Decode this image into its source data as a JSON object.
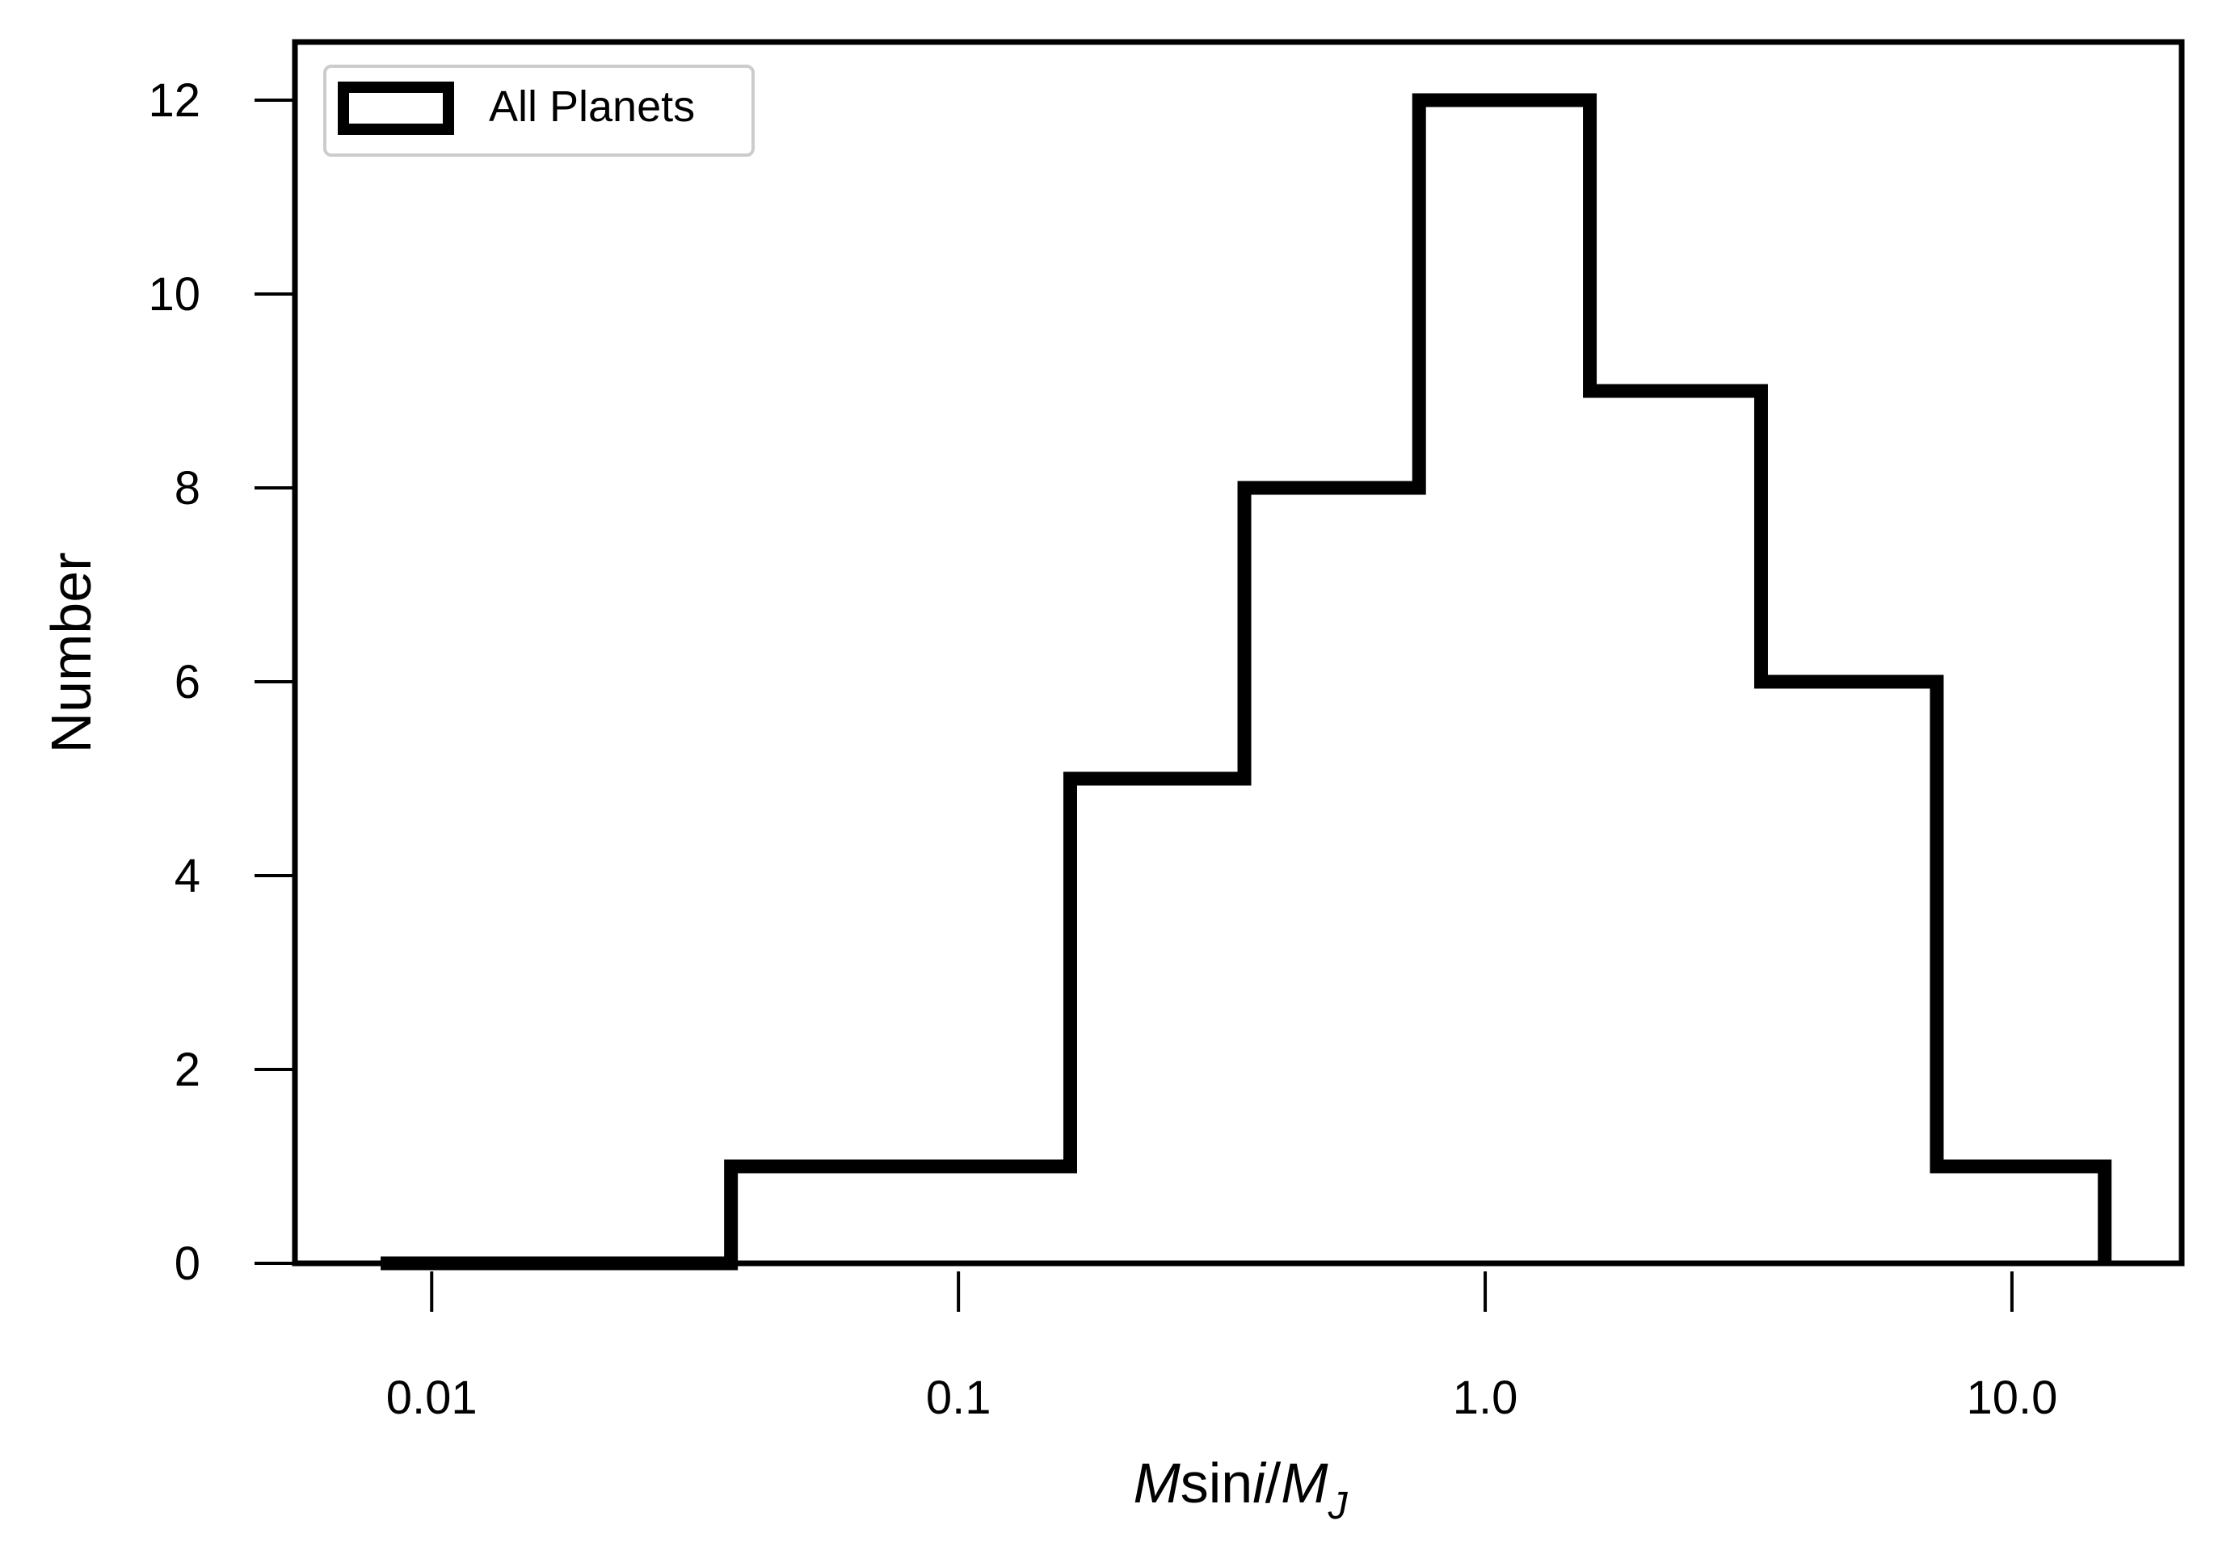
{
  "chart_data": {
    "type": "histogram",
    "xscale": "log",
    "xlim": [
      0.0055,
      21
    ],
    "ylim": [
      0,
      12.6
    ],
    "xlabel": {
      "m": "M",
      "sin": "sin",
      "i": "i",
      "slash": "/",
      "mj": "M",
      "sub": "J"
    },
    "ylabel": "Number",
    "xticks": [
      {
        "value": 0.01,
        "label": "0.01"
      },
      {
        "value": 0.1,
        "label": "0.1"
      },
      {
        "value": 1.0,
        "label": "1.0"
      },
      {
        "value": 10.0,
        "label": "10.0"
      }
    ],
    "yticks": [
      {
        "value": 0,
        "label": "0"
      },
      {
        "value": 2,
        "label": "2"
      },
      {
        "value": 4,
        "label": "4"
      },
      {
        "value": 6,
        "label": "6"
      },
      {
        "value": 8,
        "label": "8"
      },
      {
        "value": 10,
        "label": "10"
      },
      {
        "value": 12,
        "label": "12"
      }
    ],
    "bin_edges": [
      0.008,
      0.037,
      0.163,
      0.349,
      0.749,
      1.58,
      3.34,
      7.2,
      15.0
    ],
    "counts": [
      0,
      1,
      5,
      8,
      12,
      9,
      6,
      1
    ],
    "series": [
      {
        "name": "All Planets",
        "color": "#000000"
      }
    ],
    "legend_position": "top-left",
    "grid": false
  }
}
